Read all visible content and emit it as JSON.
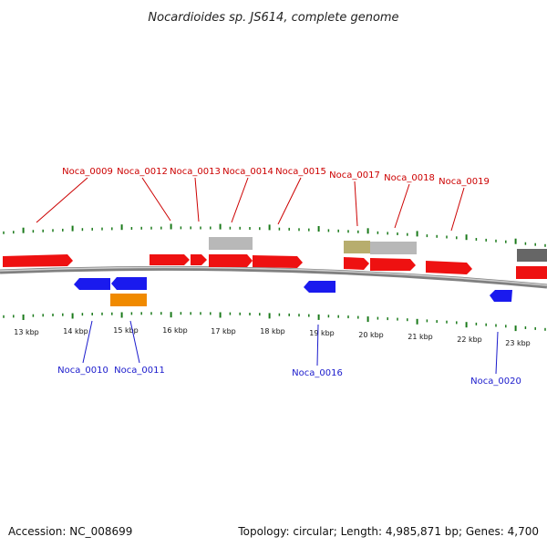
{
  "title": "Nocardioides sp. JS614, complete genome",
  "footer": {
    "accession": "Accession: NC_008699",
    "topology": "Topology: circular; Length: 4,985,871 bp; Genes: 4,700"
  },
  "colors": {
    "forward": "#ee1111",
    "reverse": "#1a1aee",
    "orange": "#f08a00",
    "gray": "#b8b8b8",
    "olive": "#b7ad6e",
    "darkgray": "#666666",
    "backbone": "#888888",
    "tick": "#1a7a1a",
    "label_forward": "#cc0000",
    "label_reverse": "#1a1acc"
  },
  "scale_labels": [
    "13 kbp",
    "14 kbp",
    "15 kbp",
    "16 kbp",
    "17 kbp",
    "18 kbp",
    "19 kbp",
    "20 kbp",
    "21 kbp",
    "22 kbp",
    "23 kbp"
  ],
  "genes_forward": [
    "Noca_0009",
    "Noca_0012",
    "Noca_0013",
    "Noca_0014",
    "Noca_0015",
    "Noca_0017",
    "Noca_0018",
    "Noca_0019"
  ],
  "genes_reverse": [
    "Noca_0010",
    "Noca_0011",
    "Noca_0016",
    "Noca_0020"
  ]
}
